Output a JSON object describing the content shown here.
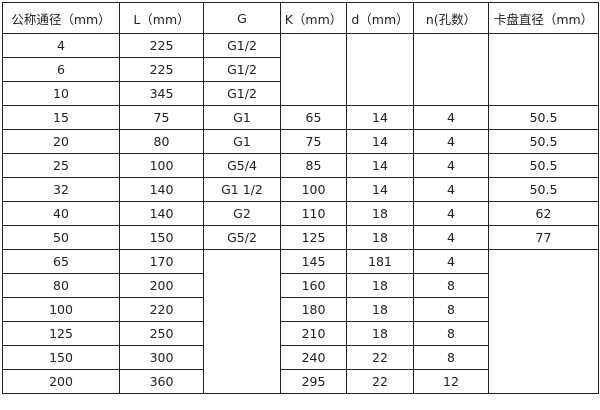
{
  "headers": [
    "公称通径（mm）",
    "L（mm）",
    "G",
    "K（mm）",
    "d（mm）",
    "n(孔数）",
    "卡盘直径（mm）"
  ],
  "rows": [
    [
      "4",
      "225",
      "G1/2",
      "",
      "",
      "",
      ""
    ],
    [
      "6",
      "225",
      "G1/2"
    ],
    [
      "10",
      "345",
      "G1/2"
    ],
    [
      "15",
      "75",
      "G1",
      "65",
      "14",
      "4",
      "50.5"
    ],
    [
      "20",
      "80",
      "G1",
      "75",
      "14",
      "4",
      "50.5"
    ],
    [
      "25",
      "100",
      "G5/4",
      "85",
      "14",
      "4",
      "50.5"
    ],
    [
      "32",
      "140",
      "G1  1/2",
      "100",
      "14",
      "4",
      "50.5"
    ],
    [
      "40",
      "140",
      "G2",
      "110",
      "18",
      "4",
      "62"
    ],
    [
      "50",
      "150",
      "G5/2",
      "125",
      "18",
      "4",
      "77"
    ],
    [
      "65",
      "170",
      "",
      "145",
      "181",
      "4",
      ""
    ],
    [
      "80",
      "200",
      "160",
      "18",
      "8"
    ],
    [
      "100",
      "220",
      "180",
      "18",
      "8"
    ],
    [
      "125",
      "250",
      "210",
      "18",
      "8"
    ],
    [
      "150",
      "300",
      "240",
      "22",
      "8"
    ],
    [
      "200",
      "360",
      "295",
      "22",
      "12"
    ]
  ]
}
